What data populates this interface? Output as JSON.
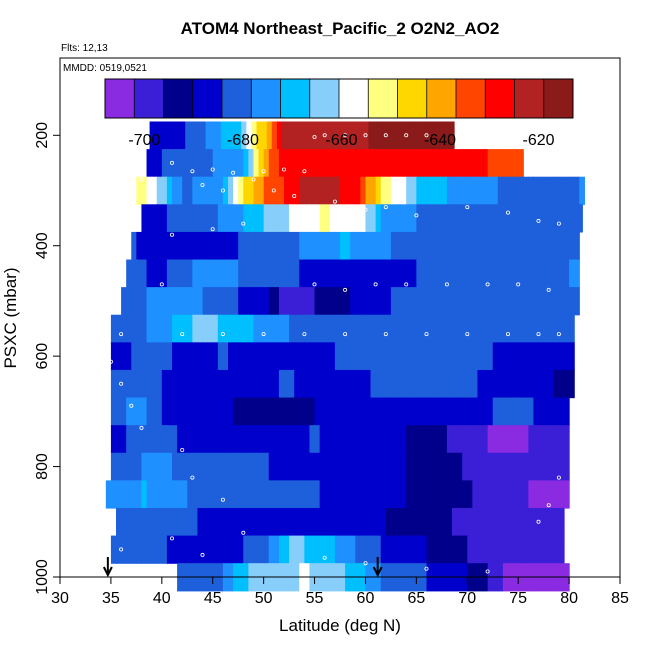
{
  "chart_data": {
    "type": "heatmap",
    "title": "ATOM4 Northeast_Pacific_2 O2N2_AO2",
    "flights_note": "Flts: 12,13",
    "dates_note": "MMDD: 0519,0521",
    "xlabel": "Latitude (deg N)",
    "ylabel": "PSXC (mbar)",
    "xlim": [
      30,
      85
    ],
    "ylim": [
      1000,
      60
    ],
    "x_ticks": [
      "30",
      "35",
      "40",
      "45",
      "50",
      "55",
      "60",
      "65",
      "70",
      "75",
      "80",
      "85"
    ],
    "y_ticks": [
      "200",
      "400",
      "600",
      "800",
      "1000"
    ],
    "y_reversed": true,
    "colorbar": {
      "min": -708,
      "max": -613,
      "tick_values": [
        -700,
        -680,
        -660,
        -640,
        -620
      ],
      "tick_labels": [
        "-700",
        "-680",
        "-660",
        "-640",
        "-620"
      ],
      "colors": [
        "#8a2be2",
        "#3a1fd6",
        "#00008b",
        "#0000cd",
        "#1e60dc",
        "#1e90ff",
        "#00bfff",
        "#87cefa",
        "#ffffff",
        "#ffff80",
        "#ffd700",
        "#ffa500",
        "#ff4500",
        "#ff0000",
        "#b22222",
        "#8b1a1a"
      ]
    },
    "markers": [
      {
        "label": "arrow",
        "x": 34.7
      },
      {
        "label": "arrow",
        "x": 61.2
      }
    ],
    "layers": [
      {
        "p": 200,
        "x0": 38.8,
        "x1": 68.7,
        "knots": [
          [
            38.8,
            -690
          ],
          [
            42,
            -686
          ],
          [
            48,
            -665
          ],
          [
            52,
            -622
          ],
          [
            58,
            -620
          ],
          [
            62,
            -618
          ],
          [
            66,
            -614
          ],
          [
            68.7,
            -614
          ]
        ]
      },
      {
        "p": 250,
        "x0": 38.5,
        "x1": 75.5,
        "knots": [
          [
            38.5,
            -686
          ],
          [
            44,
            -680
          ],
          [
            48,
            -672
          ],
          [
            50,
            -642
          ],
          [
            52,
            -628
          ],
          [
            58,
            -625
          ],
          [
            65,
            -626
          ],
          [
            70,
            -630
          ],
          [
            75.5,
            -632
          ]
        ]
      },
      {
        "p": 300,
        "x0": 37.5,
        "x1": 81.5,
        "knots": [
          [
            37.5,
            -648
          ],
          [
            39,
            -656
          ],
          [
            42,
            -680
          ],
          [
            46,
            -674
          ],
          [
            49,
            -640
          ],
          [
            55,
            -620
          ],
          [
            59,
            -628
          ],
          [
            62,
            -652
          ],
          [
            66,
            -670
          ],
          [
            72,
            -678
          ],
          [
            78,
            -680
          ],
          [
            81.5,
            -678
          ]
        ]
      },
      {
        "p": 350,
        "x0": 38.0,
        "x1": 81.3,
        "knots": [
          [
            38,
            -686
          ],
          [
            44,
            -682
          ],
          [
            48,
            -672
          ],
          [
            51,
            -664
          ],
          [
            56,
            -654
          ],
          [
            60,
            -660
          ],
          [
            62,
            -676
          ],
          [
            70,
            -682
          ],
          [
            78,
            -684
          ],
          [
            81.3,
            -684
          ]
        ]
      },
      {
        "p": 400,
        "x0": 37.0,
        "x1": 81.0,
        "knots": [
          [
            37,
            -684
          ],
          [
            42,
            -688
          ],
          [
            48,
            -684
          ],
          [
            54,
            -678
          ],
          [
            58,
            -672
          ],
          [
            64,
            -680
          ],
          [
            70,
            -684
          ],
          [
            76,
            -680
          ],
          [
            81,
            -680
          ]
        ]
      },
      {
        "p": 450,
        "x0": 36.5,
        "x1": 81.0,
        "knots": [
          [
            36.5,
            -682
          ],
          [
            40,
            -686
          ],
          [
            44,
            -676
          ],
          [
            50,
            -680
          ],
          [
            55,
            -686
          ],
          [
            60,
            -688
          ],
          [
            68,
            -682
          ],
          [
            74,
            -680
          ],
          [
            81,
            -678
          ]
        ]
      },
      {
        "p": 500,
        "x0": 36.0,
        "x1": 81.0,
        "knots": [
          [
            36,
            -684
          ],
          [
            41,
            -672
          ],
          [
            46,
            -682
          ],
          [
            50,
            -688
          ],
          [
            52,
            -700
          ],
          [
            57,
            -694
          ],
          [
            60,
            -686
          ],
          [
            66,
            -682
          ],
          [
            73,
            -680
          ],
          [
            81,
            -680
          ]
        ]
      },
      {
        "p": 550,
        "x0": 35.0,
        "x1": 80.5,
        "knots": [
          [
            35,
            -684
          ],
          [
            40,
            -676
          ],
          [
            44,
            -664
          ],
          [
            48,
            -670
          ],
          [
            52,
            -678
          ],
          [
            56,
            -680
          ],
          [
            62,
            -684
          ],
          [
            70,
            -684
          ],
          [
            76,
            -680
          ],
          [
            80.5,
            -684
          ]
        ]
      },
      {
        "p": 600,
        "x0": 35.0,
        "x1": 80.5,
        "knots": [
          [
            35,
            -686
          ],
          [
            40,
            -682
          ],
          [
            42,
            -688
          ],
          [
            46,
            -684
          ],
          [
            52,
            -688
          ],
          [
            60,
            -682
          ],
          [
            66,
            -680
          ],
          [
            72,
            -682
          ],
          [
            74,
            -690
          ],
          [
            80.5,
            -690
          ]
        ]
      },
      {
        "p": 650,
        "x0": 35.0,
        "x1": 80.5,
        "knots": [
          [
            35,
            -684
          ],
          [
            40,
            -684
          ],
          [
            42,
            -690
          ],
          [
            48,
            -688
          ],
          [
            52,
            -684
          ],
          [
            58,
            -686
          ],
          [
            66,
            -680
          ],
          [
            73,
            -686
          ],
          [
            76,
            -686
          ],
          [
            80.5,
            -694
          ]
        ]
      },
      {
        "p": 700,
        "x0": 35.0,
        "x1": 80.0,
        "knots": [
          [
            35,
            -680
          ],
          [
            38,
            -676
          ],
          [
            41,
            -688
          ],
          [
            46,
            -688
          ],
          [
            50,
            -696
          ],
          [
            55,
            -690
          ],
          [
            62,
            -686
          ],
          [
            66,
            -686
          ],
          [
            70,
            -690
          ],
          [
            74,
            -680
          ],
          [
            80,
            -690
          ]
        ]
      },
      {
        "p": 750,
        "x0": 35.0,
        "x1": 80.0,
        "knots": [
          [
            35,
            -686
          ],
          [
            40,
            -680
          ],
          [
            44,
            -690
          ],
          [
            50,
            -688
          ],
          [
            55,
            -684
          ],
          [
            60,
            -686
          ],
          [
            66,
            -692
          ],
          [
            70,
            -700
          ],
          [
            74,
            -704
          ],
          [
            78,
            -700
          ],
          [
            80,
            -696
          ]
        ]
      },
      {
        "p": 800,
        "x0": 35.0,
        "x1": 80.0,
        "knots": [
          [
            35,
            -682
          ],
          [
            40,
            -676
          ],
          [
            44,
            -684
          ],
          [
            50,
            -684
          ],
          [
            55,
            -688
          ],
          [
            60,
            -688
          ],
          [
            64,
            -690
          ],
          [
            68,
            -694
          ],
          [
            72,
            -700
          ],
          [
            76,
            -702
          ],
          [
            80,
            -698
          ]
        ]
      },
      {
        "p": 850,
        "x0": 34.5,
        "x1": 80.0,
        "knots": [
          [
            34.5,
            -678
          ],
          [
            38,
            -672
          ],
          [
            44,
            -680
          ],
          [
            50,
            -684
          ],
          [
            55,
            -684
          ],
          [
            60,
            -686
          ],
          [
            66,
            -692
          ],
          [
            70,
            -696
          ],
          [
            74,
            -698
          ],
          [
            77,
            -704
          ],
          [
            80,
            -708
          ]
        ]
      },
      {
        "p": 900,
        "x0": 35.5,
        "x1": 79.5,
        "knots": [
          [
            35.5,
            -684
          ],
          [
            40,
            -682
          ],
          [
            46,
            -686
          ],
          [
            52,
            -688
          ],
          [
            56,
            -686
          ],
          [
            60,
            -688
          ],
          [
            64,
            -692
          ],
          [
            68,
            -696
          ],
          [
            74,
            -698
          ],
          [
            79.5,
            -700
          ]
        ]
      },
      {
        "p": 950,
        "x0": 35.0,
        "x1": 79.5,
        "knots": [
          [
            35,
            -684
          ],
          [
            40,
            -684
          ],
          [
            46,
            -688
          ],
          [
            50,
            -680
          ],
          [
            53,
            -664
          ],
          [
            57,
            -672
          ],
          [
            60,
            -682
          ],
          [
            66,
            -690
          ],
          [
            70,
            -696
          ],
          [
            76,
            -702
          ],
          [
            79.5,
            -700
          ]
        ]
      },
      {
        "p": 1000,
        "x0": 41.5,
        "x1": 80.0,
        "knots": [
          [
            41.5,
            -684
          ],
          [
            45,
            -682
          ],
          [
            49,
            -664
          ],
          [
            54,
            -660
          ],
          [
            58,
            -666
          ],
          [
            62,
            -680
          ],
          [
            66,
            -684
          ],
          [
            70,
            -690
          ],
          [
            74,
            -704
          ],
          [
            80,
            -706
          ]
        ]
      }
    ]
  }
}
